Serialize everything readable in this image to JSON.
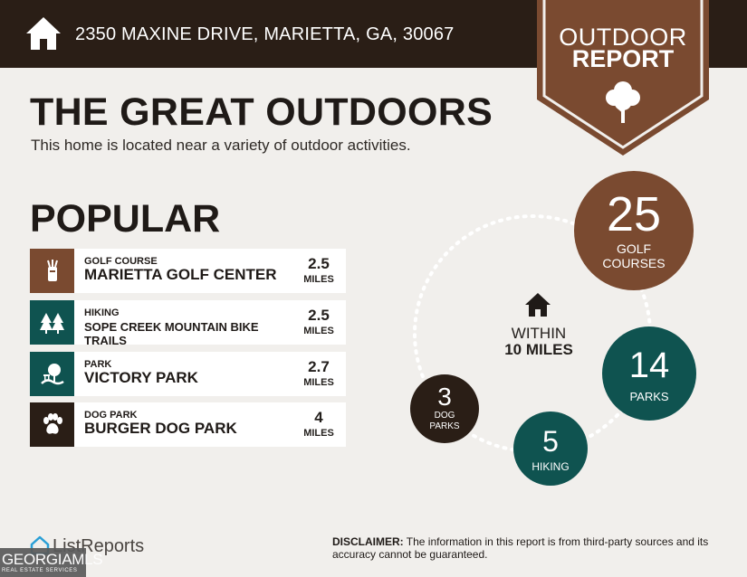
{
  "header": {
    "address": "2350 MAXINE DRIVE, MARIETTA, GA, 30067"
  },
  "badge": {
    "line1": "OUTDOOR",
    "line2": "REPORT"
  },
  "hero": {
    "title": "THE GREAT OUTDOORS",
    "subtitle": "This home is located near a variety of outdoor activities."
  },
  "popular": {
    "heading": "POPULAR",
    "items": [
      {
        "category": "GOLF COURSE",
        "name": "MARIETTA GOLF CENTER",
        "distance": "2.5",
        "unit": "MILES",
        "icon": "golf-bag-icon",
        "color": "#7a4a30"
      },
      {
        "category": "HIKING",
        "name": "SOPE CREEK MOUNTAIN BIKE TRAILS",
        "distance": "2.5",
        "unit": "MILES",
        "icon": "pine-trees-icon",
        "color": "#0f5350"
      },
      {
        "category": "PARK",
        "name": "VICTORY PARK",
        "distance": "2.7",
        "unit": "MILES",
        "icon": "park-tree-icon",
        "color": "#0f5350"
      },
      {
        "category": "DOG PARK",
        "name": "BURGER DOG PARK",
        "distance": "4",
        "unit": "MILES",
        "icon": "paw-icon",
        "color": "#2a1e16"
      }
    ]
  },
  "summary": {
    "within_line1": "WITHIN",
    "within_line2": "10 MILES",
    "golf": {
      "count": "25",
      "label": "GOLF COURSES"
    },
    "parks": {
      "count": "14",
      "label": "PARKS"
    },
    "hiking": {
      "count": "5",
      "label": "HIKING"
    },
    "dog": {
      "count": "3",
      "label": "DOG PARKS"
    }
  },
  "footer": {
    "brand": "ListReports",
    "watermark_main": "GEORGIAMLS",
    "watermark_sub": "REAL ESTATE SERVICES",
    "disclaimer_label": "DISCLAIMER:",
    "disclaimer_text": " The information in this report is from third-party sources and its accuracy cannot be guaranteed."
  },
  "colors": {
    "dark_brown": "#2a1e16",
    "brown": "#7a4a30",
    "teal": "#0f5350",
    "background": "#f1efec"
  }
}
